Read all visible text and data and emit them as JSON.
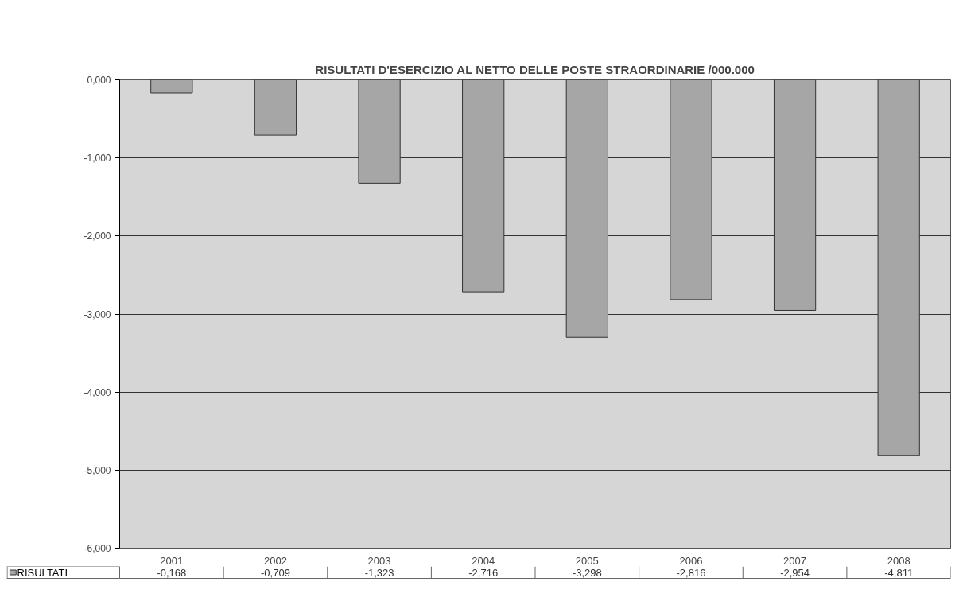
{
  "chart_data": {
    "type": "bar",
    "title": "RISULTATI D'ESERCIZIO AL NETTO DELLE POSTE STRAORDINARIE /000.000",
    "categories": [
      "2001",
      "2002",
      "2003",
      "2004",
      "2005",
      "2006",
      "2007",
      "2008"
    ],
    "series": [
      {
        "name": "RISULTATI",
        "color": "#a6a6a6",
        "values": [
          -0.168,
          -0.709,
          -1.323,
          -2.716,
          -3.298,
          -2.816,
          -2.954,
          -4.811
        ],
        "value_labels": [
          "-0,168",
          "-0,709",
          "-1,323",
          "-2,716",
          "-3,298",
          "-2,816",
          "-2,954",
          "-4,811"
        ]
      }
    ],
    "ylim": [
      -6,
      0
    ],
    "yticks": [
      {
        "value": 0,
        "label": "0,000"
      },
      {
        "value": -1,
        "label": "-1,000"
      },
      {
        "value": -2,
        "label": "-2,000"
      },
      {
        "value": -3,
        "label": "-3,000"
      },
      {
        "value": -4,
        "label": "-4,000"
      },
      {
        "value": -5,
        "label": "-5,000"
      },
      {
        "value": -6,
        "label": "-6,000"
      }
    ],
    "grid": "y",
    "legend": "bottom"
  }
}
